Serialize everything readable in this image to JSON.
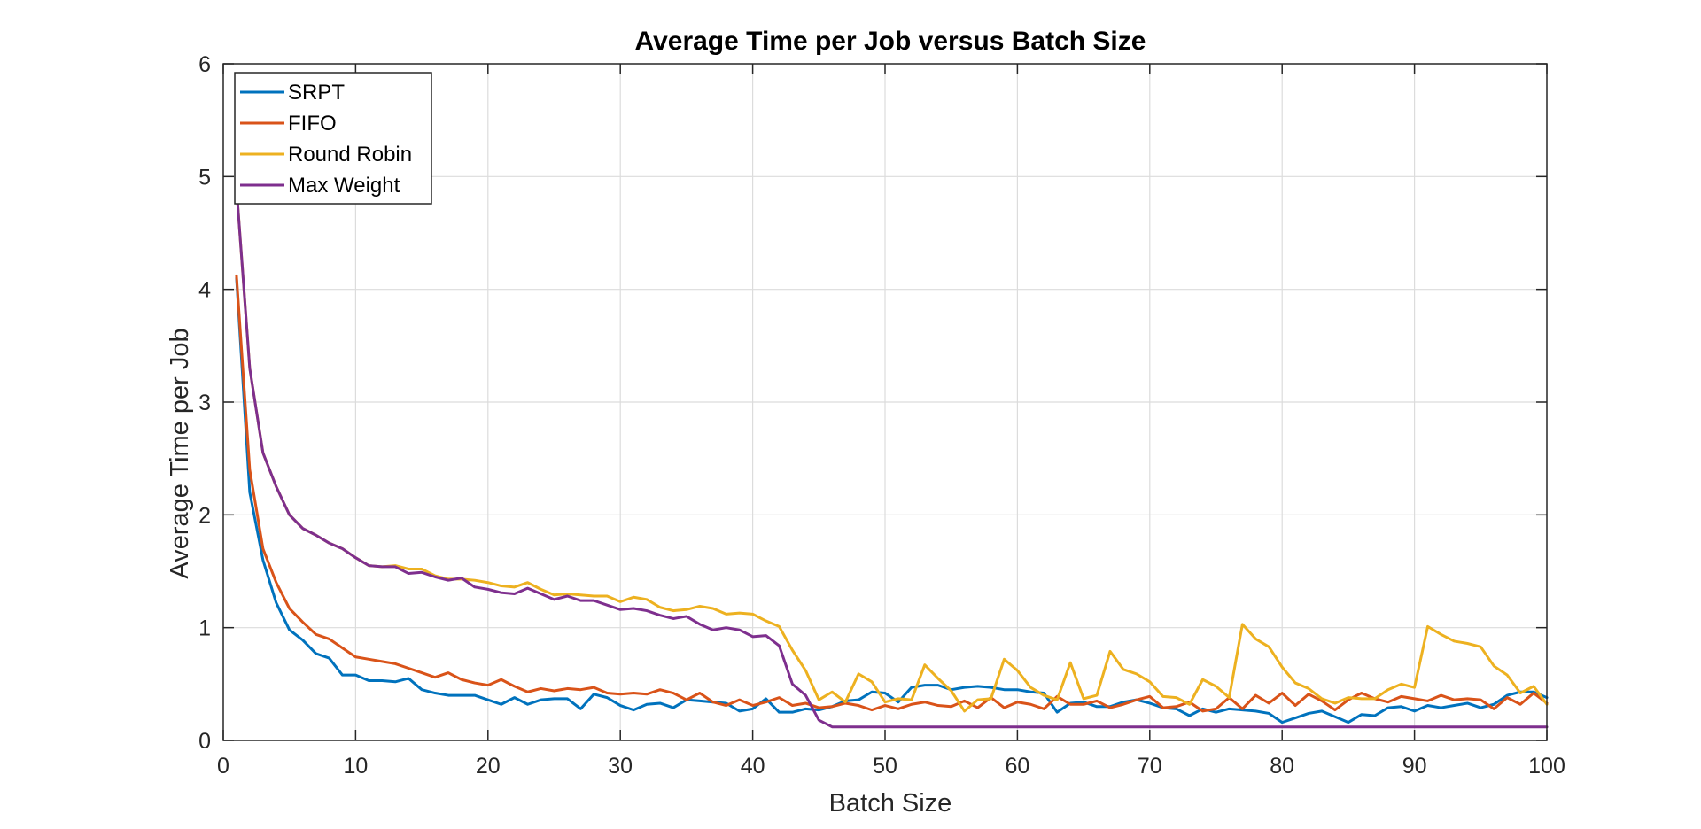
{
  "chart_data": {
    "type": "line",
    "title": "Average Time per Job versus Batch Size",
    "xlabel": "Batch Size",
    "ylabel": "Average Time per Job",
    "xlim": [
      0,
      100
    ],
    "ylim": [
      0,
      6
    ],
    "xticks": [
      0,
      10,
      20,
      30,
      40,
      50,
      60,
      70,
      80,
      90,
      100
    ],
    "yticks": [
      0,
      1,
      2,
      3,
      4,
      5,
      6
    ],
    "grid": true,
    "legend_position": "top-left",
    "x": [
      1,
      2,
      3,
      4,
      5,
      6,
      7,
      8,
      9,
      10,
      11,
      12,
      13,
      14,
      15,
      16,
      17,
      18,
      19,
      20,
      21,
      22,
      23,
      24,
      25,
      26,
      27,
      28,
      29,
      30,
      31,
      32,
      33,
      34,
      35,
      36,
      37,
      38,
      39,
      40,
      41,
      42,
      43,
      44,
      45,
      46,
      47,
      48,
      49,
      50,
      51,
      52,
      53,
      54,
      55,
      56,
      57,
      58,
      59,
      60,
      61,
      62,
      63,
      64,
      65,
      66,
      67,
      68,
      69,
      70,
      71,
      72,
      73,
      74,
      75,
      76,
      77,
      78,
      79,
      80,
      81,
      82,
      83,
      84,
      85,
      86,
      87,
      88,
      89,
      90,
      91,
      92,
      93,
      94,
      95,
      96,
      97,
      98,
      99,
      100
    ],
    "series": [
      {
        "name": "SRPT",
        "color": "#0072BD",
        "values": [
          4.1,
          2.2,
          1.6,
          1.22,
          0.98,
          0.89,
          0.77,
          0.73,
          0.58,
          0.58,
          0.53,
          0.53,
          0.52,
          0.55,
          0.45,
          0.42,
          0.4,
          0.4,
          0.4,
          0.36,
          0.32,
          0.38,
          0.32,
          0.36,
          0.37,
          0.37,
          0.28,
          0.41,
          0.38,
          0.31,
          0.27,
          0.32,
          0.33,
          0.29,
          0.36,
          0.35,
          0.34,
          0.33,
          0.26,
          0.28,
          0.37,
          0.25,
          0.25,
          0.28,
          0.27,
          0.3,
          0.35,
          0.36,
          0.43,
          0.42,
          0.34,
          0.47,
          0.49,
          0.49,
          0.45,
          0.47,
          0.48,
          0.47,
          0.45,
          0.45,
          0.43,
          0.42,
          0.25,
          0.33,
          0.34,
          0.3,
          0.3,
          0.34,
          0.36,
          0.33,
          0.29,
          0.28,
          0.22,
          0.28,
          0.25,
          0.28,
          0.27,
          0.26,
          0.24,
          0.16,
          0.2,
          0.24,
          0.26,
          0.21,
          0.16,
          0.23,
          0.22,
          0.29,
          0.3,
          0.26,
          0.31,
          0.29,
          0.31,
          0.33,
          0.29,
          0.32,
          0.4,
          0.43,
          0.43,
          0.38
        ]
      },
      {
        "name": "FIFO",
        "color": "#D95319",
        "values": [
          4.12,
          2.4,
          1.7,
          1.4,
          1.17,
          1.05,
          0.94,
          0.9,
          0.82,
          0.74,
          0.72,
          0.7,
          0.68,
          0.64,
          0.6,
          0.56,
          0.6,
          0.54,
          0.51,
          0.49,
          0.54,
          0.48,
          0.43,
          0.46,
          0.44,
          0.46,
          0.45,
          0.47,
          0.42,
          0.41,
          0.42,
          0.41,
          0.45,
          0.42,
          0.36,
          0.42,
          0.34,
          0.31,
          0.36,
          0.31,
          0.34,
          0.38,
          0.31,
          0.33,
          0.29,
          0.3,
          0.33,
          0.31,
          0.27,
          0.31,
          0.28,
          0.32,
          0.34,
          0.31,
          0.3,
          0.35,
          0.29,
          0.38,
          0.29,
          0.34,
          0.32,
          0.28,
          0.39,
          0.32,
          0.32,
          0.35,
          0.29,
          0.32,
          0.36,
          0.39,
          0.29,
          0.3,
          0.34,
          0.26,
          0.28,
          0.38,
          0.28,
          0.4,
          0.33,
          0.42,
          0.31,
          0.41,
          0.35,
          0.27,
          0.36,
          0.42,
          0.37,
          0.34,
          0.39,
          0.37,
          0.35,
          0.4,
          0.36,
          0.37,
          0.36,
          0.28,
          0.38,
          0.32,
          0.42,
          0.33
        ]
      },
      {
        "name": "Round Robin",
        "color": "#EDB120",
        "values": [
          4.9,
          3.3,
          2.55,
          2.25,
          2.0,
          1.88,
          1.82,
          1.75,
          1.7,
          1.62,
          1.55,
          1.54,
          1.55,
          1.52,
          1.52,
          1.46,
          1.43,
          1.43,
          1.42,
          1.4,
          1.37,
          1.36,
          1.4,
          1.34,
          1.29,
          1.3,
          1.29,
          1.28,
          1.28,
          1.23,
          1.27,
          1.25,
          1.18,
          1.15,
          1.16,
          1.19,
          1.17,
          1.12,
          1.13,
          1.12,
          1.06,
          1.01,
          0.8,
          0.62,
          0.36,
          0.43,
          0.34,
          0.59,
          0.52,
          0.34,
          0.37,
          0.36,
          0.67,
          0.55,
          0.44,
          0.26,
          0.36,
          0.37,
          0.72,
          0.62,
          0.47,
          0.4,
          0.36,
          0.69,
          0.37,
          0.4,
          0.79,
          0.63,
          0.59,
          0.52,
          0.39,
          0.38,
          0.32,
          0.54,
          0.48,
          0.38,
          1.03,
          0.9,
          0.83,
          0.65,
          0.51,
          0.46,
          0.37,
          0.33,
          0.38,
          0.37,
          0.37,
          0.45,
          0.5,
          0.47,
          1.01,
          0.94,
          0.88,
          0.86,
          0.83,
          0.66,
          0.58,
          0.42,
          0.48,
          0.32
        ]
      },
      {
        "name": "Max Weight",
        "color": "#7E2F8E",
        "values": [
          4.9,
          3.3,
          2.55,
          2.25,
          2.0,
          1.88,
          1.82,
          1.75,
          1.7,
          1.62,
          1.55,
          1.54,
          1.54,
          1.48,
          1.49,
          1.45,
          1.42,
          1.44,
          1.36,
          1.34,
          1.31,
          1.3,
          1.35,
          1.3,
          1.25,
          1.28,
          1.24,
          1.24,
          1.2,
          1.16,
          1.17,
          1.15,
          1.11,
          1.08,
          1.1,
          1.03,
          0.98,
          1.0,
          0.98,
          0.92,
          0.93,
          0.84,
          0.5,
          0.4,
          0.18,
          0.12,
          0.12,
          0.12,
          0.12,
          0.12,
          0.12,
          0.12,
          0.12,
          0.12,
          0.12,
          0.12,
          0.12,
          0.12,
          0.12,
          0.12,
          0.12,
          0.12,
          0.12,
          0.12,
          0.12,
          0.12,
          0.12,
          0.12,
          0.12,
          0.12,
          0.12,
          0.12,
          0.12,
          0.12,
          0.12,
          0.12,
          0.12,
          0.12,
          0.12,
          0.12,
          0.12,
          0.12,
          0.12,
          0.12,
          0.12,
          0.12,
          0.12,
          0.12,
          0.12,
          0.12,
          0.12,
          0.12,
          0.12,
          0.12,
          0.12,
          0.12,
          0.12,
          0.12,
          0.12,
          0.12
        ]
      }
    ]
  }
}
